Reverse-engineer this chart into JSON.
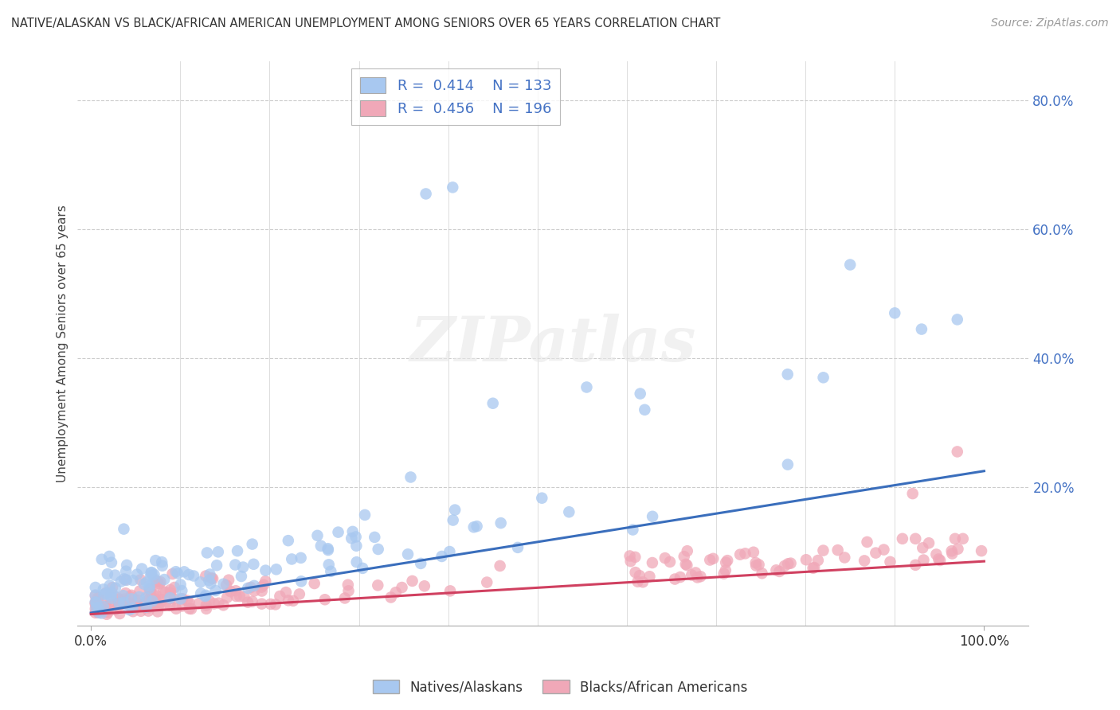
{
  "title": "NATIVE/ALASKAN VS BLACK/AFRICAN AMERICAN UNEMPLOYMENT AMONG SENIORS OVER 65 YEARS CORRELATION CHART",
  "source": "Source: ZipAtlas.com",
  "ylabel": "Unemployment Among Seniors over 65 years",
  "xlim": [
    0.0,
    1.0
  ],
  "ylim": [
    0.0,
    0.86
  ],
  "x_tick_labels": [
    "0.0%",
    "100.0%"
  ],
  "y_tick_vals": [
    0.2,
    0.4,
    0.6,
    0.8
  ],
  "y_tick_labels": [
    "20.0%",
    "40.0%",
    "60.0%",
    "80.0%"
  ],
  "native_R": 0.414,
  "native_N": 133,
  "black_R": 0.456,
  "black_N": 196,
  "native_color": "#a8c8f0",
  "black_color": "#f0a8b8",
  "native_line_color": "#3a6ebc",
  "black_line_color": "#d04060",
  "legend_label1": "Natives/Alaskans",
  "legend_label2": "Blacks/African Americans",
  "background_color": "#ffffff",
  "grid_color": "#cccccc",
  "title_color": "#333333",
  "tick_color": "#4472c4",
  "native_trend_start": 0.005,
  "native_trend_end": 0.225,
  "black_trend_start": 0.003,
  "black_trend_end": 0.085
}
